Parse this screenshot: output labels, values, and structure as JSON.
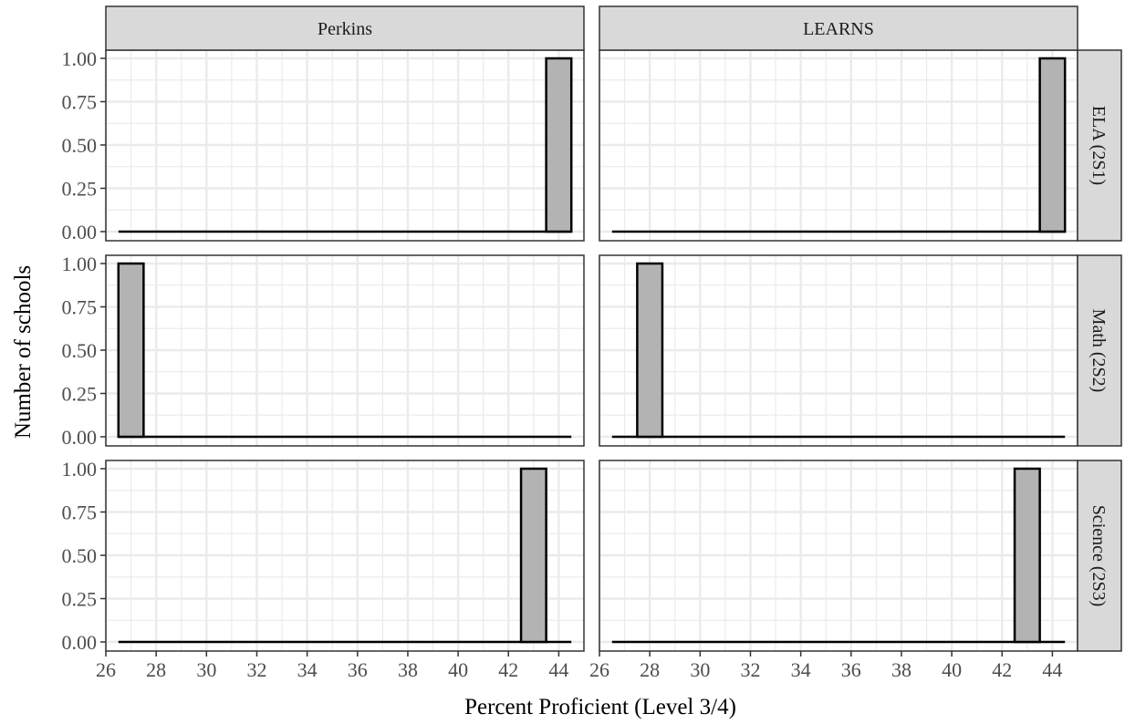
{
  "chart_data": {
    "type": "bar",
    "chart_kind": "histogram",
    "xlabel": "Percent Proficient (Level 3/4)",
    "ylabel": "Number of schools",
    "xlim": [
      26,
      45
    ],
    "ylim": [
      0,
      1
    ],
    "x_ticks": [
      "26",
      "28",
      "30",
      "32",
      "34",
      "36",
      "38",
      "40",
      "42",
      "44"
    ],
    "y_ticks": [
      "0.00",
      "0.25",
      "0.50",
      "0.75",
      "1.00"
    ],
    "bin_width": 1,
    "baseline_range": [
      26.5,
      44.5
    ],
    "grid": true,
    "colors": {
      "bar_fill": "#b3b3b3",
      "bar_stroke": "#000000",
      "strip_fill": "#d9d9d9",
      "panel_border": "#333333",
      "grid": "#ebebeb"
    },
    "columns": [
      "Perkins",
      "LEARNS"
    ],
    "rows": [
      "ELA (2S1)",
      "Math (2S2)",
      "Science (2S3)"
    ],
    "panels": [
      {
        "column": "Perkins",
        "row": "ELA (2S1)",
        "bins": [
          {
            "x": 44,
            "count": 1
          }
        ]
      },
      {
        "column": "LEARNS",
        "row": "ELA (2S1)",
        "bins": [
          {
            "x": 44,
            "count": 1
          }
        ]
      },
      {
        "column": "Perkins",
        "row": "Math (2S2)",
        "bins": [
          {
            "x": 27,
            "count": 1
          }
        ]
      },
      {
        "column": "LEARNS",
        "row": "Math (2S2)",
        "bins": [
          {
            "x": 28,
            "count": 1
          }
        ]
      },
      {
        "column": "Perkins",
        "row": "Science (2S3)",
        "bins": [
          {
            "x": 43,
            "count": 1
          }
        ]
      },
      {
        "column": "LEARNS",
        "row": "Science (2S3)",
        "bins": [
          {
            "x": 43,
            "count": 1
          }
        ]
      }
    ]
  }
}
